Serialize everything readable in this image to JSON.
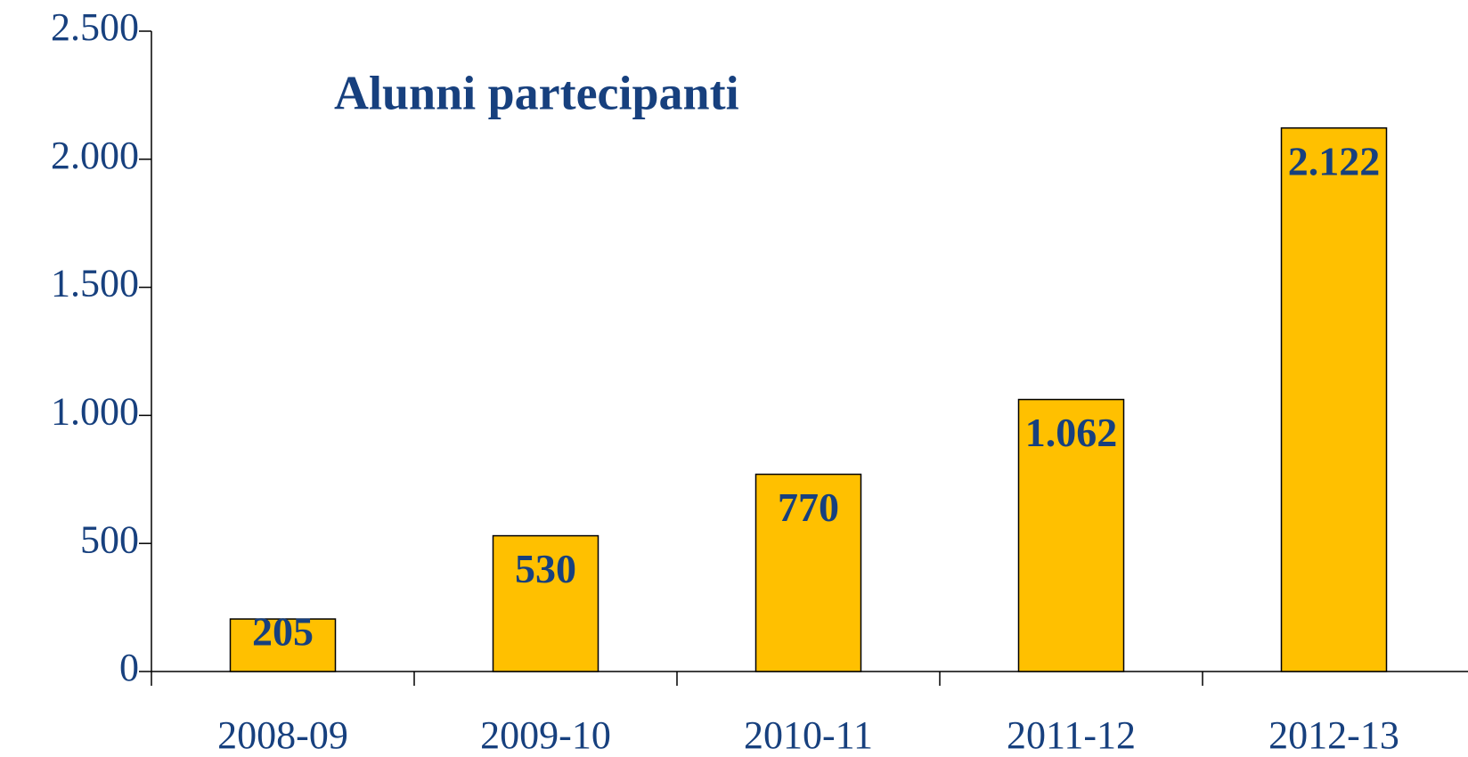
{
  "chart_data": {
    "type": "bar",
    "title": "Alunni partecipanti",
    "categories": [
      "2008-09",
      "2009-10",
      "2010-11",
      "2011-12",
      "2012-13"
    ],
    "values": [
      205,
      530,
      770,
      1062,
      2122
    ],
    "value_labels": [
      "205",
      "530",
      "770",
      "1.062",
      "2.122"
    ],
    "color": "#ffc000",
    "ylim": [
      0,
      2500
    ],
    "yticks": [
      0,
      500,
      {
        "value": 1000,
        "label": "1.000"
      },
      {
        "value": 1500,
        "label": "1.500"
      },
      {
        "value": 2000,
        "label": "2.000"
      },
      {
        "value": 2500,
        "label": "2.500"
      }
    ],
    "grid": false
  }
}
